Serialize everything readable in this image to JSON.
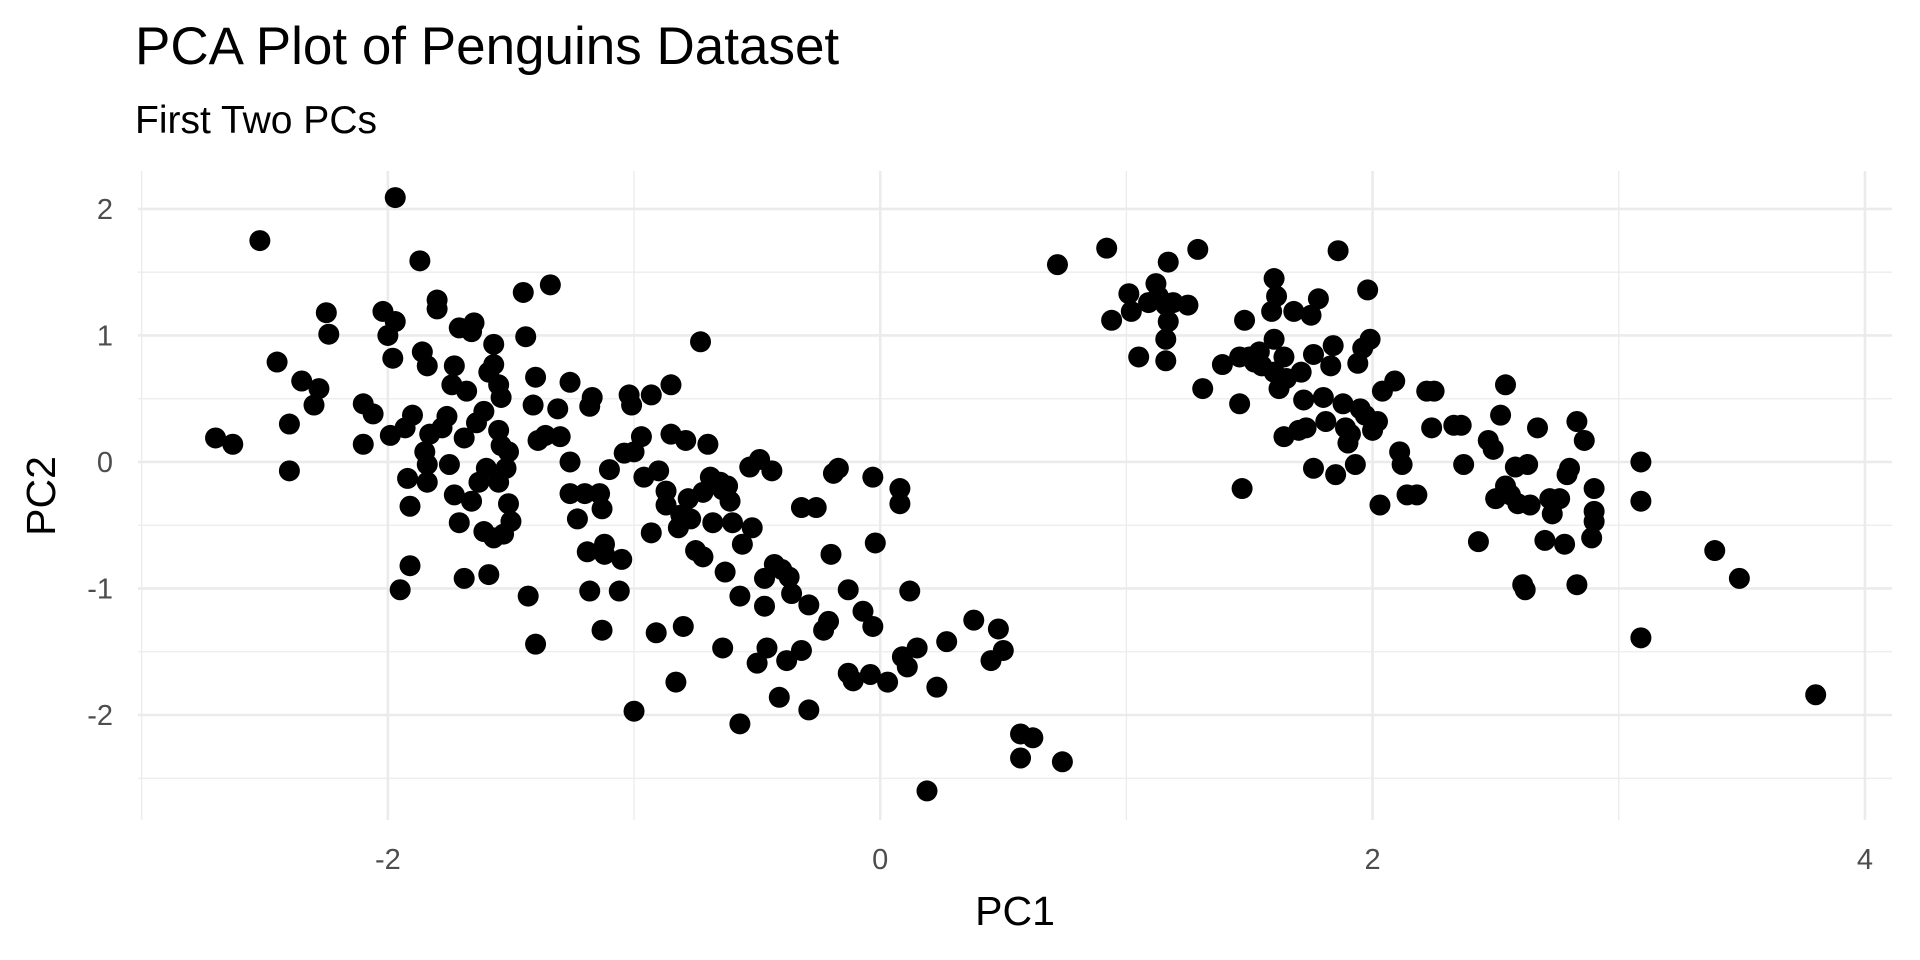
{
  "chart_data": {
    "type": "scatter",
    "title": "PCA Plot of Penguins Dataset",
    "subtitle": "First Two PCs",
    "x_label": "PC1",
    "y_label": "PC2",
    "color": "#000000",
    "grid": true,
    "xlim": [
      -3.015,
      4.11
    ],
    "ylim": [
      -2.83,
      2.3
    ],
    "xticks": [
      -2,
      0,
      2,
      4
    ],
    "yticks": [
      -2,
      -1,
      0,
      1,
      2
    ],
    "x": [
      -1.97,
      -2.52,
      -2.7,
      -2.63,
      -2.4,
      -2.4,
      -2.45,
      -2.35,
      -2.28,
      -2.3,
      -2.25,
      -2.24,
      -2.1,
      -2.06,
      -2.1,
      -2.02,
      -2.0,
      -1.97,
      -1.98,
      -1.99,
      -1.87,
      -1.8,
      -1.8,
      -1.86,
      -1.84,
      -1.9,
      -1.93,
      -1.92,
      -1.91,
      -1.91,
      -1.95,
      -1.85,
      -1.84,
      -1.84,
      -1.83,
      -1.78,
      -1.76,
      -1.74,
      -1.73,
      -1.71,
      -1.66,
      -1.65,
      -1.68,
      -1.75,
      -1.73,
      -1.71,
      -1.69,
      -1.69,
      -1.64,
      -1.61,
      -1.63,
      -1.66,
      -1.61,
      -1.59,
      -1.57,
      -1.59,
      -1.57,
      -1.57,
      -1.55,
      -1.54,
      -1.55,
      -1.54,
      -1.6,
      -1.55,
      -1.52,
      -1.51,
      -1.51,
      -1.5,
      -1.53,
      -1.45,
      -1.44,
      -1.43,
      -1.4,
      -1.4,
      -1.41,
      -1.39,
      -1.36,
      -1.34,
      -1.31,
      -1.3,
      -1.26,
      -1.26,
      -1.26,
      -1.23,
      -1.2,
      -1.19,
      -1.18,
      -1.17,
      -1.18,
      -1.14,
      -1.13,
      -1.12,
      -1.12,
      -1.13,
      -1.1,
      -1.05,
      -1.06,
      -1.02,
      -1.01,
      -1.04,
      -1.0,
      -1.0,
      -0.97,
      -0.96,
      -0.93,
      -0.93,
      -0.91,
      -0.9,
      -0.87,
      -0.87,
      -0.85,
      -0.85,
      -0.83,
      -0.82,
      -0.81,
      -0.8,
      -0.79,
      -0.78,
      -0.77,
      -0.73,
      -0.75,
      -0.72,
      -0.72,
      -0.7,
      -0.69,
      -0.68,
      -0.65,
      -0.64,
      -0.63,
      -0.62,
      -0.61,
      -0.6,
      -0.57,
      -0.57,
      -0.56,
      -0.64,
      -0.53,
      -0.52,
      -0.5,
      -0.49,
      -0.47,
      -0.47,
      -0.46,
      -0.44,
      -0.43,
      -0.41,
      -0.4,
      -0.38,
      -0.37,
      -0.36,
      -0.32,
      -0.32,
      -0.29,
      -0.29,
      -0.26,
      -0.23,
      -0.21,
      -0.2,
      -0.19,
      -0.17,
      -0.13,
      -0.13,
      -0.11,
      -0.07,
      -0.04,
      -0.03,
      -0.03,
      -0.02,
      0.03,
      0.08,
      0.08,
      0.09,
      0.11,
      0.12,
      0.15,
      0.19,
      0.23,
      0.27,
      0.38,
      0.45,
      0.48,
      0.5,
      0.57,
      0.62,
      0.57,
      0.74,
      0.72,
      0.92,
      0.94,
      1.01,
      1.02,
      1.05,
      1.09,
      1.12,
      1.13,
      1.16,
      1.17,
      1.17,
      1.16,
      1.16,
      1.19,
      1.25,
      1.29,
      1.31,
      1.39,
      1.46,
      1.46,
      1.47,
      1.48,
      1.5,
      1.52,
      1.54,
      1.55,
      1.59,
      1.6,
      1.6,
      1.6,
      1.61,
      1.62,
      1.64,
      1.65,
      1.64,
      1.68,
      1.7,
      1.71,
      1.72,
      1.73,
      1.75,
      1.76,
      1.76,
      1.78,
      1.8,
      1.81,
      1.83,
      1.84,
      1.85,
      1.86,
      1.88,
      1.89,
      1.9,
      1.91,
      1.93,
      1.94,
      1.95,
      1.96,
      1.97,
      1.99,
      1.98,
      2.0,
      2.02,
      2.04,
      2.03,
      2.09,
      2.11,
      2.12,
      2.14,
      2.18,
      2.22,
      2.24,
      2.25,
      2.33,
      2.36,
      2.37,
      2.43,
      2.47,
      2.49,
      2.5,
      2.52,
      2.54,
      2.54,
      2.56,
      2.58,
      2.59,
      2.61,
      2.62,
      2.63,
      2.64,
      2.67,
      2.7,
      2.72,
      2.73,
      2.76,
      2.78,
      2.79,
      2.8,
      2.83,
      2.83,
      2.86,
      2.89,
      2.9,
      2.9,
      2.9,
      3.09,
      3.09,
      3.09,
      3.39,
      3.49,
      3.8
    ],
    "values": [
      2.09,
      1.75,
      0.19,
      0.14,
      -0.07,
      0.3,
      0.79,
      0.64,
      0.58,
      0.45,
      1.18,
      1.01,
      0.46,
      0.38,
      0.14,
      1.19,
      1.0,
      1.11,
      0.82,
      0.21,
      1.59,
      1.28,
      1.21,
      0.87,
      0.76,
      0.37,
      0.27,
      -0.13,
      -0.35,
      -0.82,
      -1.01,
      0.08,
      -0.02,
      -0.16,
      0.22,
      0.27,
      0.36,
      0.61,
      0.76,
      1.06,
      1.03,
      1.1,
      0.56,
      -0.02,
      -0.26,
      -0.48,
      -0.92,
      0.19,
      0.31,
      0.4,
      -0.16,
      -0.31,
      -0.55,
      -0.89,
      -0.6,
      0.71,
      0.93,
      0.77,
      0.61,
      0.51,
      0.25,
      0.13,
      -0.05,
      -0.16,
      -0.05,
      0.08,
      -0.33,
      -0.47,
      -0.57,
      1.34,
      0.99,
      -1.06,
      -1.44,
      0.67,
      0.45,
      0.17,
      0.21,
      1.4,
      0.42,
      0.2,
      0.63,
      0.0,
      -0.25,
      -0.45,
      -0.25,
      -0.71,
      -1.02,
      0.51,
      0.44,
      -0.25,
      -0.37,
      -0.65,
      -0.73,
      -1.33,
      -0.06,
      -0.77,
      -1.02,
      0.53,
      0.45,
      0.07,
      0.08,
      -1.97,
      0.2,
      -0.12,
      0.53,
      -0.56,
      -1.35,
      -0.07,
      -0.23,
      -0.34,
      0.61,
      0.22,
      -1.74,
      -0.52,
      -0.42,
      -1.3,
      0.17,
      -0.29,
      -0.45,
      0.95,
      -0.7,
      -0.75,
      -0.24,
      0.14,
      -0.12,
      -0.48,
      -0.16,
      -0.22,
      -0.87,
      -0.19,
      -0.31,
      -0.48,
      -1.06,
      -2.07,
      -0.65,
      -1.47,
      -0.04,
      -0.52,
      -1.59,
      0.02,
      -1.14,
      -0.92,
      -1.47,
      -0.07,
      -0.81,
      -1.86,
      -0.85,
      -1.57,
      -0.91,
      -1.04,
      -1.49,
      -0.36,
      -1.96,
      -1.13,
      -0.36,
      -1.33,
      -1.26,
      -0.73,
      -0.09,
      -0.05,
      -1.01,
      -1.67,
      -1.73,
      -1.18,
      -1.68,
      -1.3,
      -0.12,
      -0.64,
      -1.74,
      -0.21,
      -0.33,
      -1.54,
      -1.62,
      -1.02,
      -1.47,
      -2.6,
      -1.78,
      -1.42,
      -1.25,
      -1.57,
      -1.32,
      -1.49,
      -2.15,
      -2.18,
      -2.34,
      -2.37,
      1.56,
      1.69,
      1.12,
      1.33,
      1.19,
      0.83,
      1.26,
      1.41,
      1.31,
      1.24,
      1.58,
      1.11,
      0.97,
      0.8,
      1.26,
      1.24,
      1.68,
      0.58,
      0.77,
      0.83,
      0.46,
      -0.21,
      1.12,
      0.83,
      0.79,
      0.87,
      0.76,
      1.19,
      0.97,
      0.71,
      1.45,
      1.31,
      0.58,
      0.83,
      0.66,
      0.2,
      1.19,
      0.25,
      0.71,
      0.49,
      0.27,
      1.16,
      0.85,
      -0.05,
      1.29,
      0.51,
      0.32,
      0.76,
      0.92,
      -0.1,
      1.67,
      0.46,
      0.27,
      0.15,
      0.22,
      -0.02,
      0.78,
      0.42,
      0.9,
      0.37,
      0.97,
      1.36,
      0.25,
      0.32,
      0.56,
      -0.34,
      0.64,
      0.08,
      -0.02,
      -0.26,
      -0.26,
      0.56,
      0.27,
      0.56,
      0.29,
      0.29,
      -0.02,
      -0.63,
      0.17,
      0.1,
      -0.29,
      0.37,
      0.61,
      -0.19,
      -0.26,
      -0.04,
      -0.33,
      -0.97,
      -1.01,
      -0.02,
      -0.34,
      0.27,
      -0.62,
      -0.29,
      -0.41,
      -0.29,
      -0.65,
      -0.1,
      -0.05,
      0.32,
      -0.97,
      0.17,
      -0.6,
      -0.21,
      -0.39,
      -0.47,
      0.0,
      -0.31,
      -1.39,
      -0.7,
      -0.92,
      -1.84
    ]
  }
}
